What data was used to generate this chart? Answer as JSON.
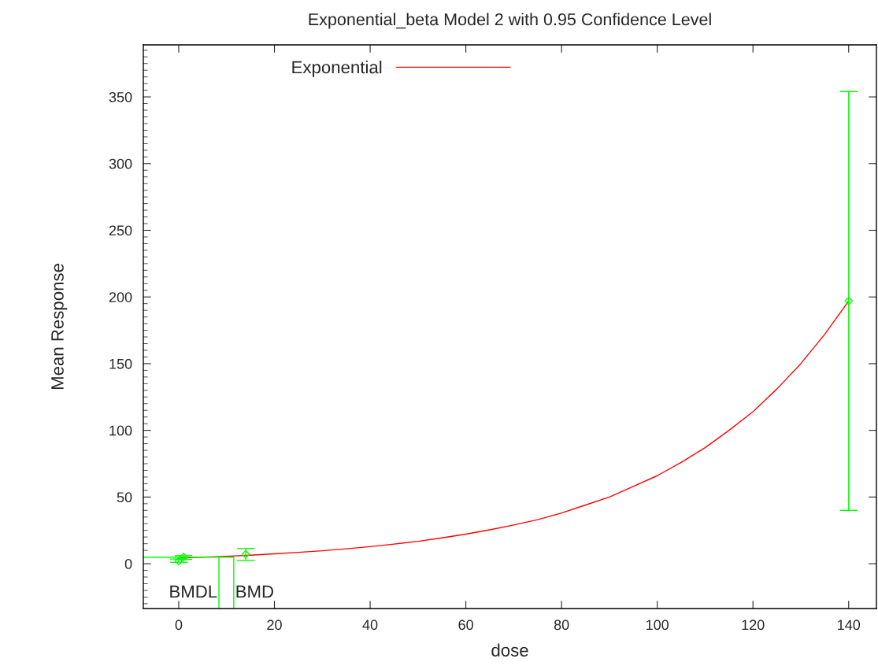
{
  "chart_data": {
    "type": "line",
    "title": "Exponential_beta Model 2 with 0.95 Confidence Level",
    "xlabel": "dose",
    "ylabel": "Mean Response",
    "xlim": [
      -7.4,
      145.8
    ],
    "xticks": [
      0,
      20,
      40,
      60,
      80,
      100,
      120,
      140
    ],
    "ylim": [
      -33.6,
      389
    ],
    "yticks": [
      0,
      50,
      100,
      150,
      200,
      250,
      300,
      350
    ],
    "grid": false,
    "legend": "top left",
    "series": [
      {
        "name": "Exponential",
        "color": "#ff0000",
        "line_style": "solid",
        "marker": "none",
        "x": [
          0,
          5,
          10,
          15,
          20,
          25,
          30,
          35,
          40,
          45,
          50,
          55,
          60,
          65,
          70,
          75,
          80,
          85,
          90,
          95,
          100,
          105,
          110,
          115,
          120,
          125,
          130,
          135,
          140
        ],
        "values": [
          4.3,
          4.9,
          5.6,
          6.4,
          7.4,
          8.5,
          9.7,
          11.2,
          12.8,
          14.7,
          16.8,
          19.4,
          22.2,
          25.4,
          29,
          33,
          38,
          44,
          50,
          58,
          66,
          76,
          87,
          100,
          114,
          131,
          150,
          172,
          197
        ]
      },
      {
        "type": "scatter",
        "color": "#00ff00",
        "marker": "diamond",
        "x": [
          0,
          1,
          14,
          140
        ],
        "values": [
          2,
          5.1,
          7.1,
          197
        ],
        "errors": [
          [
            1.1,
            3.5
          ],
          [
            3.2,
            6.1
          ],
          [
            2.5,
            11.4
          ],
          [
            40,
            354
          ]
        ]
      },
      {
        "type": "line",
        "color": "#00ff00",
        "line_style": "solid",
        "marker": "none",
        "x": [
          -7.4,
          11.5,
          11.5
        ],
        "values": [
          4.9,
          4.9,
          -33.6
        ]
      },
      {
        "type": "line",
        "color": "#00ff00",
        "line_style": "solid",
        "marker": "none",
        "x": [
          8.4,
          8.4
        ],
        "values": [
          4.9,
          -33.6
        ]
      }
    ],
    "annotations": [
      {
        "text": "BMDL",
        "x": 8.4,
        "y": -22
      },
      {
        "text": "BMD",
        "x": 11.5,
        "y": -22
      }
    ]
  }
}
